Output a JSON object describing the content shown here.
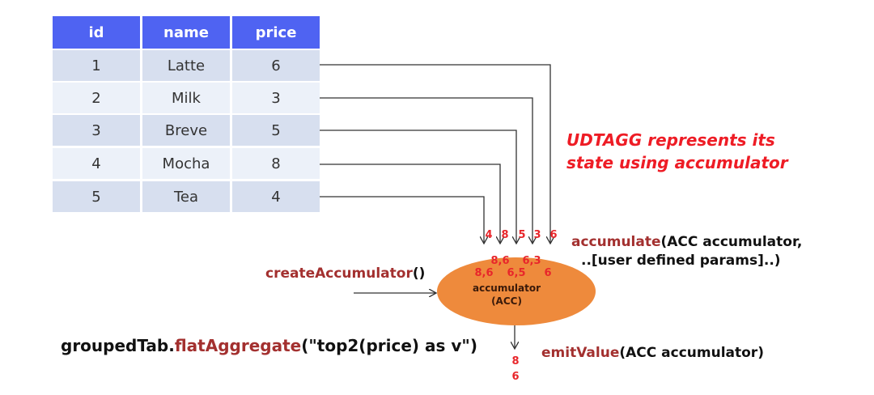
{
  "table": {
    "headers": [
      "id",
      "name",
      "price"
    ],
    "rows": [
      [
        "1",
        "Latte",
        "6"
      ],
      [
        "2",
        "Milk",
        "3"
      ],
      [
        "3",
        "Breve",
        "5"
      ],
      [
        "4",
        "Mocha",
        "8"
      ],
      [
        "5",
        "Tea",
        "4"
      ]
    ]
  },
  "note": {
    "line1": "UDTAGG represents its",
    "line2": "state using accumulator"
  },
  "arrow_labels": [
    "4",
    "8",
    "5",
    "3",
    "6"
  ],
  "acc_states": {
    "top_left": "8,6",
    "top_right": "6,3",
    "bottom_left": "8,6",
    "bottom_mid": "6,5",
    "bottom_right": "6"
  },
  "accumulator": {
    "line1": "accumulator",
    "line2": "(ACC)"
  },
  "create": {
    "fn": "createAccumulator",
    "args": "()"
  },
  "accumulate": {
    "fn": "accumulate",
    "args": "(ACC accumulator,",
    "line2": "..[user defined params]..)"
  },
  "emit": {
    "fn": "emitValue",
    "args": "(ACC accumulator)"
  },
  "query": {
    "obj": "groupedTab.",
    "fn": "flatAggregate",
    "args": "(\"top2(price) as v\")"
  },
  "output": [
    "8",
    "6"
  ],
  "colors": {
    "header": "#4f63f2",
    "row_a": "#d7dfef",
    "row_b": "#ecf1f9",
    "ellipse": "#ee8a3c",
    "fn": "#a3302f",
    "note": "#ee1c25"
  }
}
